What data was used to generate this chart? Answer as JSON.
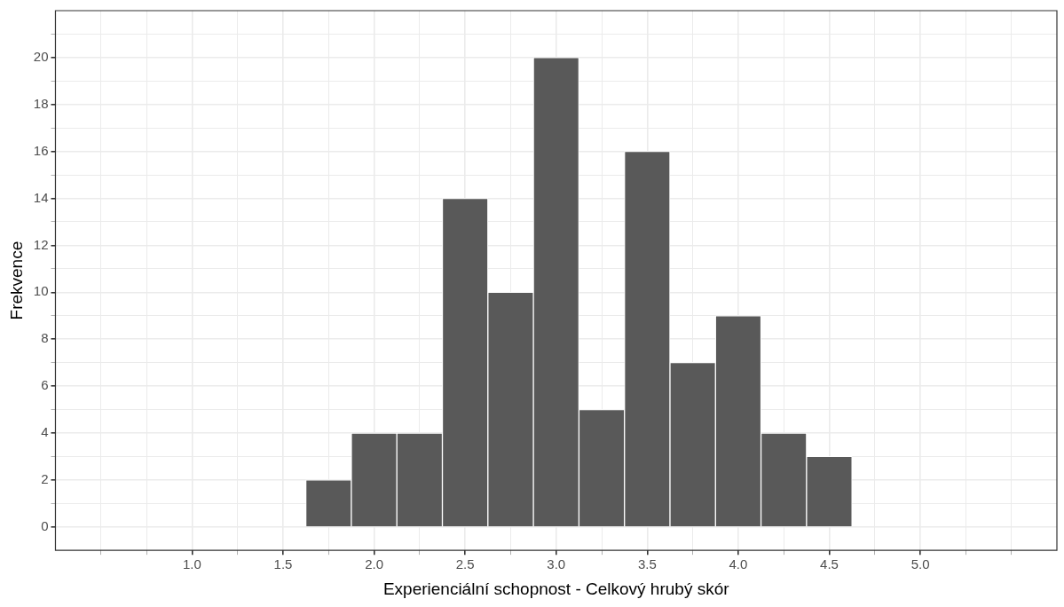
{
  "chart_data": {
    "type": "histogram",
    "xlabel": "Experienciální schopnost - Celkový hrubý skór",
    "ylabel": "Frekvence",
    "bins": [
      0.625,
      0.875,
      1.125,
      1.375,
      1.625,
      1.875,
      2.125,
      2.375,
      2.625,
      2.875,
      3.125,
      3.375,
      3.625,
      3.875,
      4.125,
      4.375,
      4.625,
      4.875,
      5.125,
      5.375
    ],
    "values": [
      0,
      0,
      0,
      0,
      2,
      4,
      4,
      14,
      10,
      20,
      5,
      16,
      7,
      9,
      4,
      3,
      0,
      0,
      0
    ],
    "color": "#595959",
    "xlim": [
      0.25,
      5.75
    ],
    "xticks": [
      {
        "value": 0.5,
        "label": null
      },
      {
        "value": 0.75,
        "label": null
      },
      {
        "value": 1,
        "label": "1.0"
      },
      {
        "value": 1.25,
        "label": null
      },
      {
        "value": 1.5,
        "label": "1.5"
      },
      {
        "value": 1.75,
        "label": null
      },
      {
        "value": 2,
        "label": "2.0"
      },
      {
        "value": 2.25,
        "label": null
      },
      {
        "value": 2.5,
        "label": "2.5"
      },
      {
        "value": 2.75,
        "label": null
      },
      {
        "value": 3,
        "label": "3.0"
      },
      {
        "value": 3.25,
        "label": null
      },
      {
        "value": 3.5,
        "label": "3.5"
      },
      {
        "value": 3.75,
        "label": null
      },
      {
        "value": 4,
        "label": "4.0"
      },
      {
        "value": 4.25,
        "label": null
      },
      {
        "value": 4.5,
        "label": "4.5"
      },
      {
        "value": 4.75,
        "label": null
      },
      {
        "value": 5,
        "label": "5.0"
      },
      {
        "value": 5.25,
        "label": null
      },
      {
        "value": 5.5,
        "label": null
      }
    ],
    "ylim": [
      -1,
      22
    ],
    "yticks": [
      0,
      {
        "value": 1,
        "label": null
      },
      2,
      {
        "value": 3,
        "label": null
      },
      4,
      {
        "value": 5,
        "label": null
      },
      6,
      {
        "value": 7,
        "label": null
      },
      8,
      {
        "value": 9,
        "label": null
      },
      10,
      {
        "value": 11,
        "label": null
      },
      12,
      {
        "value": 13,
        "label": null
      },
      14,
      {
        "value": 15,
        "label": null
      },
      16,
      {
        "value": 17,
        "label": null
      },
      18,
      {
        "value": 19,
        "label": null
      },
      20,
      {
        "value": 21,
        "label": null
      }
    ],
    "grid": true,
    "legend": false
  }
}
